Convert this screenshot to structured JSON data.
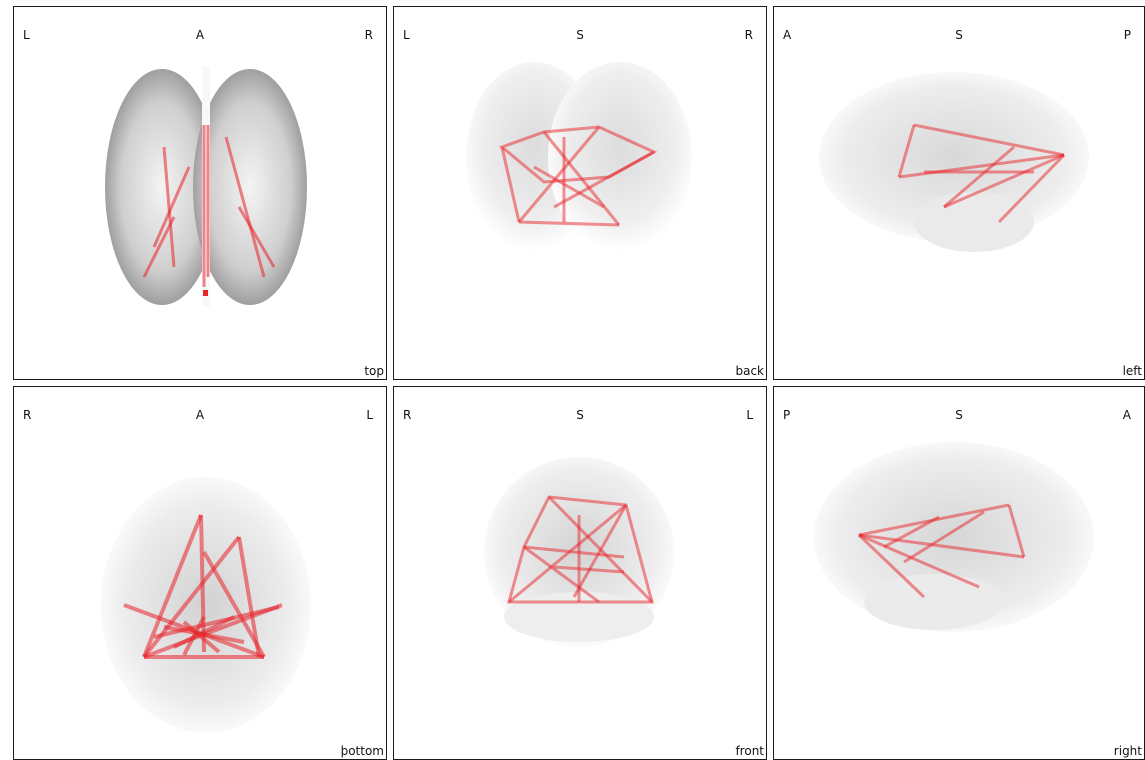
{
  "panels": [
    {
      "id": "top",
      "view": "top",
      "orientation": {
        "left": "L",
        "center": "A",
        "right": "R"
      }
    },
    {
      "id": "back",
      "view": "back",
      "orientation": {
        "left": "L",
        "center": "S",
        "right": "R"
      }
    },
    {
      "id": "left",
      "view": "left",
      "orientation": {
        "left": "A",
        "center": "S",
        "right": "P"
      }
    },
    {
      "id": "bottom",
      "view": "þottom",
      "orientation": {
        "left": "R",
        "center": "A",
        "right": "L"
      }
    },
    {
      "id": "front",
      "view": "front",
      "orientation": {
        "left": "R",
        "center": "S",
        "right": "L"
      }
    },
    {
      "id": "right",
      "view": "right",
      "orientation": {
        "left": "P",
        "center": "S",
        "right": "A"
      }
    }
  ],
  "colors": {
    "connection": "#e8232a",
    "brain_dark": "#8c8c8c",
    "brain_light": "#f2f2f2",
    "border": "#1a1a1a"
  }
}
